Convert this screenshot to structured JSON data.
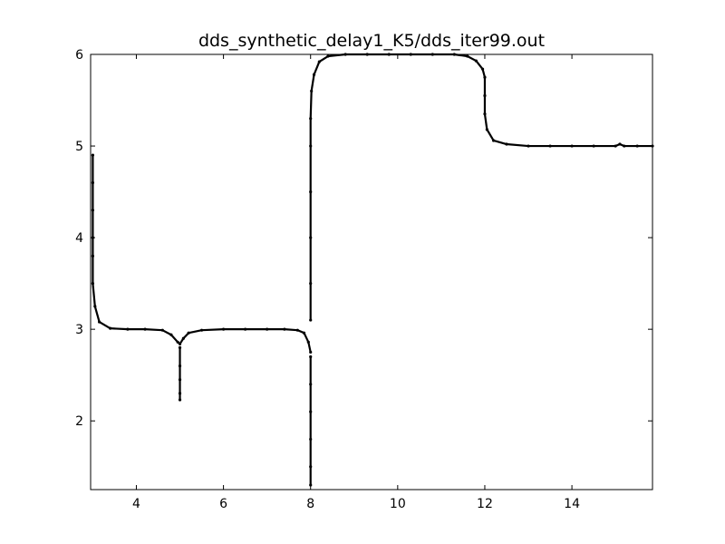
{
  "chart_data": {
    "type": "scatter",
    "title": "dds_synthetic_delay1_K5/dds_iter99.out",
    "xlabel": "",
    "ylabel": "",
    "xlim": [
      2.95,
      15.85
    ],
    "ylim": [
      1.25,
      6.0
    ],
    "x_ticks": [
      4,
      6,
      8,
      10,
      12,
      14
    ],
    "y_ticks": [
      2,
      3,
      4,
      5,
      6
    ],
    "x_tick_labels": [
      "4",
      "6",
      "8",
      "10",
      "12",
      "14"
    ],
    "y_tick_labels": [
      "2",
      "3",
      "4",
      "5",
      "6"
    ],
    "grid": false,
    "legend": "none",
    "marker_color": "#000000",
    "series": [
      {
        "values": [
          [
            3.0,
            4.9
          ],
          [
            3.0,
            4.6
          ],
          [
            3.0,
            4.3
          ],
          [
            3.0,
            4.0
          ],
          [
            3.0,
            3.8
          ],
          [
            3.0,
            3.5
          ],
          [
            3.05,
            3.25
          ],
          [
            3.15,
            3.08
          ],
          [
            3.4,
            3.01
          ],
          [
            3.8,
            3.0
          ],
          [
            4.2,
            3.0
          ],
          [
            4.6,
            2.99
          ],
          [
            4.8,
            2.94
          ],
          [
            4.95,
            2.86
          ],
          [
            5.0,
            2.84
          ],
          [
            5.08,
            2.9
          ],
          [
            5.2,
            2.96
          ],
          [
            5.5,
            2.99
          ],
          [
            6.0,
            3.0
          ],
          [
            6.5,
            3.0
          ],
          [
            7.0,
            3.0
          ],
          [
            7.4,
            3.0
          ],
          [
            7.7,
            2.99
          ],
          [
            7.85,
            2.96
          ],
          [
            7.95,
            2.86
          ],
          [
            8.0,
            2.75
          ]
        ]
      },
      {
        "values": [
          [
            5.0,
            2.8
          ],
          [
            5.0,
            2.6
          ],
          [
            5.0,
            2.45
          ],
          [
            5.0,
            2.3
          ],
          [
            5.0,
            2.23
          ]
        ]
      },
      {
        "values": [
          [
            8.0,
            2.7
          ],
          [
            8.0,
            2.4
          ],
          [
            8.0,
            2.1
          ],
          [
            8.0,
            1.8
          ],
          [
            8.0,
            1.5
          ],
          [
            8.0,
            1.3
          ],
          [
            8.0,
            3.1
          ],
          [
            8.0,
            3.5
          ],
          [
            8.0,
            4.0
          ],
          [
            8.0,
            4.5
          ],
          [
            8.0,
            5.0
          ],
          [
            8.0,
            5.3
          ],
          [
            8.02,
            5.6
          ],
          [
            8.08,
            5.78
          ],
          [
            8.2,
            5.92
          ],
          [
            8.4,
            5.98
          ],
          [
            8.8,
            6.0
          ],
          [
            9.3,
            6.0
          ],
          [
            9.8,
            6.0
          ],
          [
            10.3,
            6.0
          ],
          [
            10.8,
            6.0
          ],
          [
            11.3,
            6.0
          ],
          [
            11.6,
            5.98
          ],
          [
            11.8,
            5.93
          ],
          [
            11.95,
            5.84
          ],
          [
            12.0,
            5.75
          ],
          [
            12.0,
            5.55
          ],
          [
            12.0,
            5.35
          ],
          [
            12.05,
            5.18
          ],
          [
            12.2,
            5.06
          ],
          [
            12.5,
            5.02
          ],
          [
            13.0,
            5.0
          ],
          [
            13.5,
            5.0
          ],
          [
            14.0,
            5.0
          ],
          [
            14.5,
            5.0
          ],
          [
            15.0,
            5.0
          ],
          [
            15.1,
            5.02
          ],
          [
            15.2,
            5.0
          ],
          [
            15.5,
            5.0
          ],
          [
            15.85,
            5.0
          ]
        ]
      }
    ]
  }
}
